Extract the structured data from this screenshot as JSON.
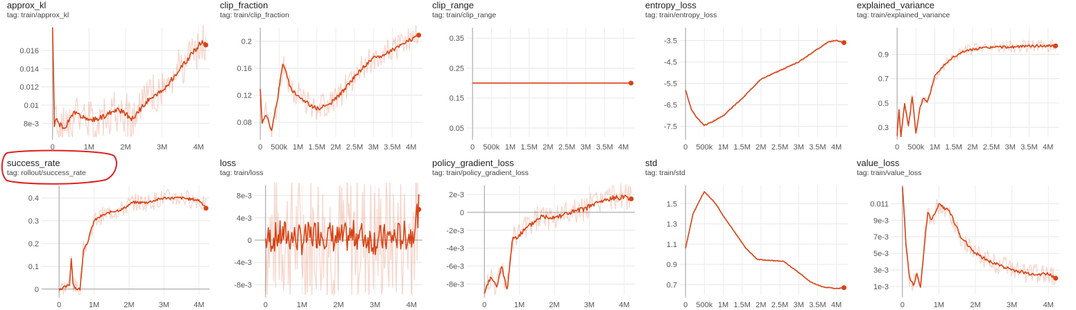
{
  "accent_color": "#d84315",
  "highlight_color": "#e01e1e",
  "chart_data": [
    {
      "id": "approx_kl",
      "title": "approx_kl",
      "tag": "tag: train/approx_kl",
      "type": "line",
      "seed": 1,
      "ylim": [
        0.0065,
        0.0185
      ],
      "xlim": [
        -0.3,
        4.3
      ],
      "yticks": [
        {
          "v": 0.008,
          "label": "8e-3"
        },
        {
          "v": 0.01,
          "label": "0.01"
        },
        {
          "v": 0.012,
          "label": "0.012"
        },
        {
          "v": 0.014,
          "label": "0.014"
        },
        {
          "v": 0.016,
          "label": "0.016"
        }
      ],
      "xticks": [
        {
          "v": 0,
          "label": "0"
        },
        {
          "v": 1,
          "label": "1M"
        },
        {
          "v": 2,
          "label": "2M"
        },
        {
          "v": 3,
          "label": "3M"
        },
        {
          "v": 4,
          "label": "4M"
        }
      ],
      "x": [
        0,
        0.05,
        0.1,
        0.3,
        0.6,
        1,
        1.4,
        1.8,
        2.2,
        2.6,
        3,
        3.4,
        3.8,
        4.1,
        4.2
      ],
      "y": [
        0.0185,
        0.0078,
        0.0085,
        0.0073,
        0.0092,
        0.0082,
        0.0088,
        0.0095,
        0.0085,
        0.0105,
        0.0115,
        0.0135,
        0.0155,
        0.017,
        0.0166
      ],
      "noise": 0.0006,
      "band": 0.0025,
      "last": {
        "x": 4.2,
        "y": 0.0166
      }
    },
    {
      "id": "clip_fraction",
      "title": "clip_fraction",
      "tag": "tag: train/clip_fraction",
      "type": "line",
      "seed": 2,
      "ylim": [
        0.058,
        0.22
      ],
      "xlim": [
        -0.15,
        4.3
      ],
      "yticks": [
        {
          "v": 0.08,
          "label": "0.08"
        },
        {
          "v": 0.12,
          "label": "0.12"
        },
        {
          "v": 0.16,
          "label": "0.16"
        },
        {
          "v": 0.2,
          "label": "0.2"
        }
      ],
      "xticks": [
        {
          "v": 0,
          "label": "0"
        },
        {
          "v": 0.5,
          "label": "500k"
        },
        {
          "v": 1,
          "label": "1M"
        },
        {
          "v": 1.5,
          "label": "1.5M"
        },
        {
          "v": 2,
          "label": "2M"
        },
        {
          "v": 2.5,
          "label": "2.5M"
        },
        {
          "v": 3,
          "label": "3M"
        },
        {
          "v": 3.5,
          "label": "3.5M"
        },
        {
          "v": 4,
          "label": "4M"
        }
      ],
      "x": [
        0,
        0.05,
        0.15,
        0.3,
        0.45,
        0.6,
        0.8,
        1,
        1.2,
        1.5,
        1.8,
        2.1,
        2.4,
        2.7,
        3,
        3.3,
        3.6,
        3.9,
        4.1,
        4.2
      ],
      "y": [
        0.13,
        0.08,
        0.09,
        0.07,
        0.11,
        0.17,
        0.13,
        0.12,
        0.11,
        0.1,
        0.105,
        0.12,
        0.14,
        0.16,
        0.175,
        0.18,
        0.19,
        0.2,
        0.205,
        0.21
      ],
      "noise": 0.006,
      "band": 0.02,
      "last": {
        "x": 4.2,
        "y": 0.209
      }
    },
    {
      "id": "clip_range",
      "title": "clip_range",
      "tag": "tag: train/clip_range",
      "type": "line",
      "seed": 3,
      "ylim": [
        0.02,
        0.385
      ],
      "xlim": [
        -0.15,
        4.3
      ],
      "yticks": [
        {
          "v": 0.05,
          "label": "0.05"
        },
        {
          "v": 0.15,
          "label": "0.15"
        },
        {
          "v": 0.25,
          "label": "0.25"
        },
        {
          "v": 0.35,
          "label": "0.35"
        }
      ],
      "xticks": [
        {
          "v": 0,
          "label": "0"
        },
        {
          "v": 0.5,
          "label": "500k"
        },
        {
          "v": 1,
          "label": "1M"
        },
        {
          "v": 1.5,
          "label": "1.5M"
        },
        {
          "v": 2,
          "label": "2M"
        },
        {
          "v": 2.5,
          "label": "2.5M"
        },
        {
          "v": 3,
          "label": "3M"
        },
        {
          "v": 3.5,
          "label": "3.5M"
        },
        {
          "v": 4,
          "label": "4M"
        }
      ],
      "x": [
        0,
        4.2
      ],
      "y": [
        0.2,
        0.2
      ],
      "noise": 0,
      "band": 0,
      "last": {
        "x": 4.2,
        "y": 0.2
      }
    },
    {
      "id": "entropy_loss",
      "title": "entropy_loss",
      "tag": "tag: train/entropy_loss",
      "type": "line",
      "seed": 4,
      "ylim": [
        -8.0,
        -2.9
      ],
      "xlim": [
        -0.15,
        4.3
      ],
      "yticks": [
        {
          "v": -7.5,
          "label": "-7.5"
        },
        {
          "v": -6.5,
          "label": "-6.5"
        },
        {
          "v": -5.5,
          "label": "-5.5"
        },
        {
          "v": -4.5,
          "label": "-4.5"
        },
        {
          "v": -3.5,
          "label": "-3.5"
        }
      ],
      "xticks": [
        {
          "v": 0,
          "label": "0"
        },
        {
          "v": 0.5,
          "label": "500k"
        },
        {
          "v": 1,
          "label": "1M"
        },
        {
          "v": 1.5,
          "label": "1.5M"
        },
        {
          "v": 2,
          "label": "2M"
        },
        {
          "v": 2.5,
          "label": "2.5M"
        },
        {
          "v": 3,
          "label": "3M"
        },
        {
          "v": 3.5,
          "label": "3.5M"
        },
        {
          "v": 4,
          "label": "4M"
        }
      ],
      "x": [
        0,
        0.15,
        0.3,
        0.5,
        0.7,
        1,
        1.5,
        2,
        2.5,
        3,
        3.5,
        3.8,
        4,
        4.2
      ],
      "y": [
        -5.8,
        -6.7,
        -7.1,
        -7.45,
        -7.3,
        -7.0,
        -6.2,
        -5.3,
        -4.9,
        -4.5,
        -3.9,
        -3.55,
        -3.5,
        -3.6
      ],
      "noise": 0.04,
      "band": 0.08,
      "last": {
        "x": 4.2,
        "y": -3.6
      }
    },
    {
      "id": "explained_variance",
      "title": "explained_variance",
      "tag": "tag: train/explained_variance",
      "type": "line",
      "seed": 5,
      "ylim": [
        0.22,
        1.12
      ],
      "xlim": [
        -0.15,
        4.3
      ],
      "yticks": [
        {
          "v": 0.3,
          "label": "0.3"
        },
        {
          "v": 0.5,
          "label": "0.5"
        },
        {
          "v": 0.7,
          "label": "0.7"
        },
        {
          "v": 0.9,
          "label": "0.9"
        }
      ],
      "xticks": [
        {
          "v": 0,
          "label": "0"
        },
        {
          "v": 0.5,
          "label": "500k"
        },
        {
          "v": 1,
          "label": "1M"
        },
        {
          "v": 1.5,
          "label": "1.5M"
        },
        {
          "v": 2,
          "label": "2M"
        },
        {
          "v": 2.5,
          "label": "2.5M"
        },
        {
          "v": 3,
          "label": "3M"
        },
        {
          "v": 3.5,
          "label": "3.5M"
        },
        {
          "v": 4,
          "label": "4M"
        }
      ],
      "x": [
        0,
        0.05,
        0.1,
        0.2,
        0.3,
        0.4,
        0.5,
        0.6,
        0.7,
        0.8,
        1,
        1.2,
        1.5,
        1.8,
        2.2,
        2.6,
        3,
        3.5,
        4,
        4.2
      ],
      "y": [
        0.22,
        0.45,
        0.22,
        0.5,
        0.3,
        0.55,
        0.25,
        0.45,
        0.55,
        0.5,
        0.72,
        0.8,
        0.88,
        0.93,
        0.95,
        0.96,
        0.96,
        0.97,
        0.97,
        0.97
      ],
      "noise": 0.02,
      "band": 0.05,
      "last": {
        "x": 4.2,
        "y": 0.97
      }
    },
    {
      "id": "success_rate",
      "title": "success_rate",
      "tag": "tag: rollout/success_rate",
      "type": "line",
      "seed": 6,
      "ylim": [
        -0.025,
        0.455
      ],
      "xlim": [
        -0.5,
        4.3
      ],
      "yticks": [
        {
          "v": 0,
          "label": "0"
        },
        {
          "v": 0.1,
          "label": "0.1"
        },
        {
          "v": 0.2,
          "label": "0.2"
        },
        {
          "v": 0.3,
          "label": "0.3"
        },
        {
          "v": 0.4,
          "label": "0.4"
        }
      ],
      "xticks": [
        {
          "v": 0,
          "label": "0"
        },
        {
          "v": 1,
          "label": "1M"
        },
        {
          "v": 2,
          "label": "2M"
        },
        {
          "v": 3,
          "label": "3M"
        },
        {
          "v": 4,
          "label": "4M"
        }
      ],
      "x": [
        0,
        0.2,
        0.3,
        0.35,
        0.4,
        0.5,
        0.6,
        0.7,
        0.8,
        1.0,
        1.2,
        1.5,
        1.8,
        2.1,
        2.5,
        3,
        3.5,
        4,
        4.2
      ],
      "y": [
        0,
        0.01,
        0.02,
        0.14,
        0.02,
        0.0,
        0.0,
        0.18,
        0.2,
        0.3,
        0.32,
        0.34,
        0.35,
        0.38,
        0.38,
        0.4,
        0.4,
        0.39,
        0.36
      ],
      "noise": 0.012,
      "band": 0.04,
      "last": {
        "x": 4.2,
        "y": 0.355
      }
    },
    {
      "id": "loss",
      "title": "loss",
      "tag": "tag: train/loss",
      "type": "line",
      "seed": 7,
      "ylim": [
        -0.0098,
        0.0098
      ],
      "xlim": [
        -0.3,
        4.3
      ],
      "yticks": [
        {
          "v": -0.008,
          "label": "-8e-3"
        },
        {
          "v": -0.004,
          "label": "-4e-3"
        },
        {
          "v": 0,
          "label": "0"
        },
        {
          "v": 0.004,
          "label": "4e-3"
        },
        {
          "v": 0.008,
          "label": "8e-3"
        }
      ],
      "xticks": [
        {
          "v": 0,
          "label": "0"
        },
        {
          "v": 1,
          "label": "1M"
        },
        {
          "v": 2,
          "label": "2M"
        },
        {
          "v": 3,
          "label": "3M"
        },
        {
          "v": 4,
          "label": "4M"
        }
      ],
      "x": [
        0,
        0.5,
        1,
        1.5,
        2,
        2.5,
        3,
        3.5,
        4,
        4.2
      ],
      "y": [
        0.0,
        0.001,
        0.0,
        0.0015,
        0.0,
        0.001,
        0.0,
        0.0005,
        0.001,
        0.0055
      ],
      "noise": 0.0055,
      "band": 0.012,
      "last": {
        "x": 4.2,
        "y": 0.0055
      }
    },
    {
      "id": "policy_gradient_loss",
      "title": "policy_gradient_loss",
      "tag": "tag: train/policy_gradient_loss",
      "type": "line",
      "seed": 8,
      "ylim": [
        -0.0092,
        0.003
      ],
      "xlim": [
        -0.5,
        4.3
      ],
      "yticks": [
        {
          "v": -0.008,
          "label": "-8e-3"
        },
        {
          "v": -0.006,
          "label": "-6e-3"
        },
        {
          "v": -0.004,
          "label": "-4e-3"
        },
        {
          "v": -0.002,
          "label": "-2e-3"
        },
        {
          "v": 0,
          "label": "0"
        },
        {
          "v": 0.002,
          "label": "2e-3"
        }
      ],
      "xticks": [
        {
          "v": 0,
          "label": "0"
        },
        {
          "v": 1,
          "label": "1M"
        },
        {
          "v": 2,
          "label": "2M"
        },
        {
          "v": 3,
          "label": "3M"
        },
        {
          "v": 4,
          "label": "4M"
        }
      ],
      "x": [
        0,
        0.2,
        0.35,
        0.5,
        0.65,
        0.8,
        1,
        1.3,
        1.6,
        2,
        2.4,
        2.8,
        3.2,
        3.6,
        4,
        4.2
      ],
      "y": [
        -0.009,
        -0.007,
        -0.0085,
        -0.006,
        -0.0088,
        -0.003,
        -0.0025,
        -0.0015,
        -0.0005,
        -0.0005,
        -0.0001,
        0.0003,
        0.001,
        0.0015,
        0.0018,
        0.0015
      ],
      "noise": 0.0006,
      "band": 0.0015,
      "last": {
        "x": 4.2,
        "y": 0.0015
      }
    },
    {
      "id": "std",
      "title": "std",
      "tag": "tag: train/std",
      "type": "line",
      "seed": 9,
      "ylim": [
        0.6,
        1.68
      ],
      "xlim": [
        -0.15,
        4.3
      ],
      "yticks": [
        {
          "v": 0.7,
          "label": "0.7"
        },
        {
          "v": 0.9,
          "label": "0.9"
        },
        {
          "v": 1.1,
          "label": "1.1"
        },
        {
          "v": 1.3,
          "label": "1.3"
        },
        {
          "v": 1.5,
          "label": "1.5"
        }
      ],
      "xticks": [
        {
          "v": 0,
          "label": "0"
        },
        {
          "v": 0.5,
          "label": "500k"
        },
        {
          "v": 1,
          "label": "1M"
        },
        {
          "v": 1.5,
          "label": "1.5M"
        },
        {
          "v": 2,
          "label": "2M"
        },
        {
          "v": 2.5,
          "label": "2.5M"
        },
        {
          "v": 3,
          "label": "3M"
        },
        {
          "v": 3.5,
          "label": "3.5M"
        },
        {
          "v": 4,
          "label": "4M"
        }
      ],
      "x": [
        0,
        0.2,
        0.4,
        0.5,
        0.6,
        0.8,
        1,
        1.3,
        1.6,
        1.9,
        2.2,
        2.6,
        3,
        3.3,
        3.6,
        4,
        4.2
      ],
      "y": [
        1.06,
        1.4,
        1.55,
        1.62,
        1.58,
        1.5,
        1.38,
        1.22,
        1.06,
        0.95,
        0.94,
        0.93,
        0.82,
        0.73,
        0.68,
        0.66,
        0.67
      ],
      "noise": 0.006,
      "band": 0.01,
      "last": {
        "x": 4.2,
        "y": 0.67
      }
    },
    {
      "id": "value_loss",
      "title": "value_loss",
      "tag": "tag: train/value_loss",
      "type": "line",
      "seed": 10,
      "ylim": [
        0.0,
        0.0132
      ],
      "xlim": [
        -0.3,
        4.3
      ],
      "yticks": [
        {
          "v": 0.001,
          "label": "1e-3"
        },
        {
          "v": 0.003,
          "label": "3e-3"
        },
        {
          "v": 0.005,
          "label": "5e-3"
        },
        {
          "v": 0.007,
          "label": "7e-3"
        },
        {
          "v": 0.009,
          "label": "9e-3"
        },
        {
          "v": 0.011,
          "label": "0.011"
        }
      ],
      "xticks": [
        {
          "v": 0,
          "label": "0"
        },
        {
          "v": 1,
          "label": "1M"
        },
        {
          "v": 2,
          "label": "2M"
        },
        {
          "v": 3,
          "label": "3M"
        },
        {
          "v": 4,
          "label": "4M"
        }
      ],
      "x": [
        0,
        0.1,
        0.2,
        0.3,
        0.4,
        0.5,
        0.6,
        0.7,
        0.8,
        1,
        1.3,
        1.6,
        2,
        2.4,
        3,
        3.5,
        4,
        4.2
      ],
      "y": [
        0.0132,
        0.006,
        0.002,
        0.0012,
        0.0025,
        0.0008,
        0.006,
        0.01,
        0.009,
        0.011,
        0.01,
        0.007,
        0.005,
        0.004,
        0.003,
        0.0025,
        0.0025,
        0.002
      ],
      "noise": 0.0004,
      "band": 0.0012,
      "last": {
        "x": 4.2,
        "y": 0.002
      }
    }
  ]
}
